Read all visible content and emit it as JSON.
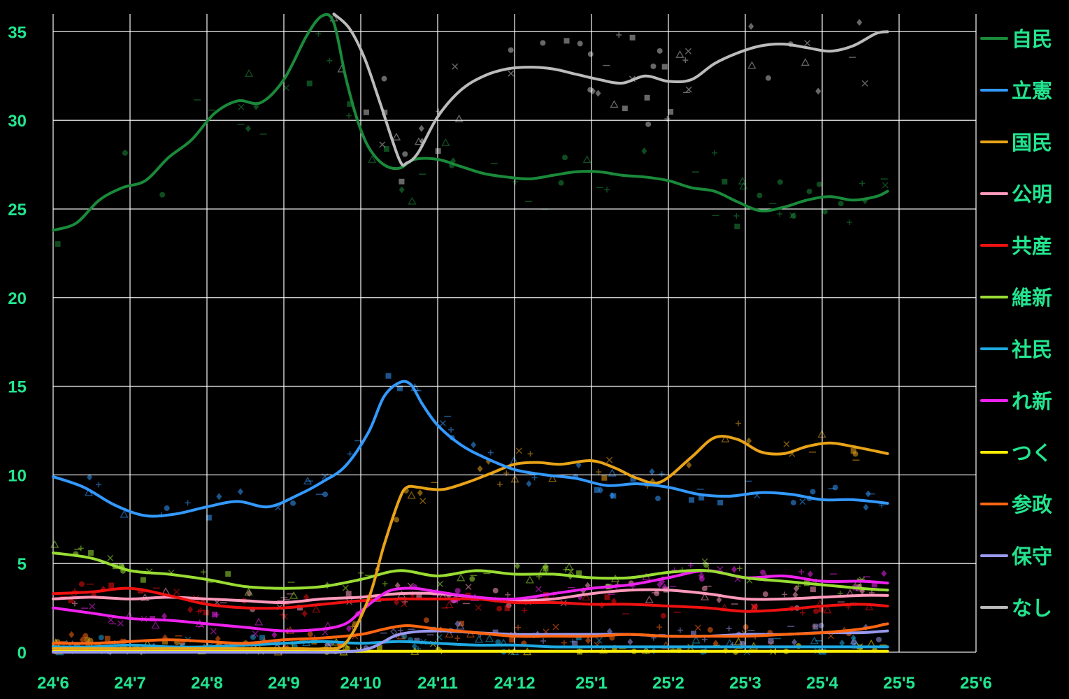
{
  "chart_data": {
    "type": "line",
    "title": "",
    "xlabel": "",
    "ylabel": "",
    "x_tick_labels": [
      "24'6",
      "24'7",
      "24'8",
      "24'9",
      "24'10",
      "24'11",
      "24'12",
      "25'1",
      "25'2",
      "25'3",
      "25'4",
      "25'5",
      "25'6"
    ],
    "y_tick_labels": [
      "0",
      "5",
      "10",
      "15",
      "20",
      "25",
      "30",
      "35"
    ],
    "xlim": [
      0,
      12
    ],
    "ylim": [
      0,
      36
    ],
    "grid": true,
    "legend_position": "right",
    "series": [
      {
        "name": "自民",
        "color": "#1a8a3a",
        "x": [
          0,
          0.3,
          0.6,
          0.9,
          1.2,
          1.5,
          1.8,
          2.1,
          2.4,
          2.7,
          3,
          3.3,
          3.5,
          3.65,
          3.8,
          3.95,
          4.1,
          4.3,
          4.5,
          4.7,
          5,
          5.3,
          5.6,
          5.9,
          6.2,
          6.5,
          6.8,
          7.1,
          7.4,
          7.7,
          8,
          8.3,
          8.6,
          8.9,
          9.2,
          9.5,
          9.8,
          10.1,
          10.4,
          10.7,
          10.85
        ],
        "y": [
          23.8,
          24.2,
          25.5,
          26.2,
          26.6,
          27.9,
          28.9,
          30.4,
          31.1,
          31,
          32.3,
          34.8,
          35.9,
          35.5,
          32.5,
          30.1,
          28.5,
          27.5,
          27.3,
          27.8,
          27.8,
          27.4,
          27,
          26.8,
          26.7,
          26.9,
          27.1,
          27.1,
          26.9,
          26.8,
          26.6,
          26.2,
          26,
          25.4,
          24.9,
          25.1,
          25.5,
          25.7,
          25.5,
          25.7,
          26
        ]
      },
      {
        "name": "立憲",
        "color": "#3399ff",
        "x": [
          0,
          0.4,
          0.8,
          1.2,
          1.6,
          2,
          2.4,
          2.8,
          3.2,
          3.5,
          3.8,
          4.1,
          4.3,
          4.5,
          4.65,
          4.8,
          5,
          5.3,
          5.6,
          6,
          6.4,
          6.8,
          7.2,
          7.6,
          8,
          8.4,
          8.8,
          9.2,
          9.6,
          10,
          10.4,
          10.85
        ],
        "y": [
          9.9,
          9.3,
          8.3,
          7.7,
          7.8,
          8.2,
          8.5,
          8.2,
          8.9,
          9.6,
          10.5,
          12.4,
          14.4,
          15.2,
          15.1,
          14,
          12.8,
          11.7,
          11,
          10.3,
          10,
          9.8,
          9.4,
          9.5,
          9.3,
          8.9,
          8.8,
          9,
          8.9,
          8.6,
          8.6,
          8.4
        ]
      },
      {
        "name": "国民",
        "color": "#e8a317",
        "x": [
          0,
          0.4,
          0.8,
          1.2,
          1.6,
          2,
          2.4,
          2.8,
          3.2,
          3.5,
          3.8,
          4.1,
          4.3,
          4.5,
          4.6,
          4.75,
          4.9,
          5.1,
          5.4,
          5.7,
          6,
          6.3,
          6.6,
          7,
          7.3,
          7.6,
          7.9,
          8.3,
          8.6,
          8.9,
          9.2,
          9.5,
          9.8,
          10.1,
          10.4,
          10.85
        ],
        "y": [
          0.2,
          0.2,
          0.2,
          0.2,
          0.2,
          0.2,
          0.2,
          0.2,
          0.2,
          0.2,
          0.5,
          3,
          6,
          8.6,
          9.3,
          9.3,
          9.2,
          9.2,
          9.6,
          10.1,
          10.6,
          10.7,
          10.6,
          10.8,
          10.4,
          9.8,
          9.6,
          11,
          12.1,
          12,
          11.3,
          11.2,
          11.6,
          11.8,
          11.6,
          11.2
        ]
      },
      {
        "name": "公明",
        "color": "#ff99bb",
        "x": [
          0,
          0.5,
          1,
          1.5,
          2,
          2.5,
          3,
          3.5,
          4,
          4.5,
          5,
          5.5,
          6,
          6.5,
          7,
          7.5,
          8,
          8.5,
          9,
          9.5,
          10,
          10.5,
          10.85
        ],
        "y": [
          3,
          3.1,
          3,
          3.1,
          3,
          2.9,
          2.8,
          3,
          3.1,
          3.3,
          3.3,
          3.1,
          2.9,
          3,
          3.3,
          3.5,
          3.5,
          3.3,
          3,
          3,
          3.1,
          3.2,
          3.2
        ]
      },
      {
        "name": "共産",
        "color": "#ee1111",
        "x": [
          0,
          0.5,
          1,
          1.5,
          2,
          2.5,
          3,
          3.5,
          4,
          4.5,
          5,
          5.5,
          6,
          6.5,
          7,
          7.5,
          8,
          8.5,
          9,
          9.5,
          10,
          10.5,
          10.85
        ],
        "y": [
          3.3,
          3.4,
          3.6,
          3.2,
          2.7,
          2.5,
          2.5,
          2.7,
          2.9,
          3,
          3,
          3,
          2.8,
          2.8,
          2.7,
          2.7,
          2.6,
          2.5,
          2.3,
          2.4,
          2.6,
          2.7,
          2.6
        ]
      },
      {
        "name": "維新",
        "color": "#99dd33",
        "x": [
          0,
          0.5,
          1,
          1.5,
          2,
          2.5,
          3,
          3.5,
          4,
          4.5,
          5,
          5.5,
          6,
          6.5,
          7,
          7.5,
          8,
          8.5,
          9,
          9.5,
          10,
          10.5,
          10.85
        ],
        "y": [
          5.6,
          5.3,
          4.6,
          4.4,
          4.1,
          3.7,
          3.6,
          3.7,
          4.1,
          4.6,
          4.3,
          4.6,
          4.4,
          4.4,
          4.2,
          4.2,
          4.5,
          4.6,
          4.2,
          4,
          3.8,
          3.6,
          3.5
        ]
      },
      {
        "name": "社民",
        "color": "#1ea8e0",
        "x": [
          0,
          0.5,
          1,
          1.5,
          2,
          2.5,
          3,
          3.5,
          4,
          4.5,
          5,
          5.5,
          6,
          6.5,
          7,
          7.5,
          8,
          8.5,
          9,
          9.5,
          10,
          10.5,
          10.85
        ],
        "y": [
          0.3,
          0.3,
          0.4,
          0.3,
          0.3,
          0.4,
          0.5,
          0.6,
          0.5,
          0.6,
          0.5,
          0.4,
          0.4,
          0.3,
          0.3,
          0.3,
          0.3,
          0.3,
          0.3,
          0.3,
          0.3,
          0.3,
          0.3
        ]
      },
      {
        "name": "れ新",
        "color": "#ee22ee",
        "x": [
          0,
          0.5,
          1,
          1.5,
          2,
          2.5,
          3,
          3.5,
          3.8,
          4,
          4.2,
          4.4,
          4.7,
          5,
          5.5,
          6,
          6.5,
          7,
          7.5,
          8,
          8.5,
          9,
          9.5,
          10,
          10.5,
          10.85
        ],
        "y": [
          2.5,
          2.2,
          1.9,
          1.8,
          1.6,
          1.4,
          1.2,
          1.3,
          1.6,
          2.3,
          3,
          3.5,
          3.6,
          3.4,
          3.1,
          3,
          3.3,
          3.6,
          3.8,
          4.2,
          4.6,
          4.2,
          4.3,
          4,
          4,
          3.9
        ]
      },
      {
        "name": "つく",
        "color": "#ffee00",
        "x": [
          0,
          1,
          2,
          3,
          4,
          5,
          6,
          7,
          8,
          9,
          10,
          10.85
        ],
        "y": [
          0.05,
          0.05,
          0.05,
          0.05,
          0.05,
          0.05,
          0.05,
          0.05,
          0.05,
          0.05,
          0.05,
          0.05
        ]
      },
      {
        "name": "参政",
        "color": "#ff6611",
        "x": [
          0,
          0.5,
          1,
          1.5,
          2,
          2.5,
          3,
          3.5,
          4,
          4.3,
          4.6,
          5,
          5.5,
          6,
          6.5,
          7,
          7.5,
          8,
          8.5,
          9,
          9.5,
          10,
          10.5,
          10.85
        ],
        "y": [
          0.5,
          0.5,
          0.6,
          0.7,
          0.6,
          0.5,
          0.7,
          0.8,
          1,
          1.3,
          1.5,
          1.3,
          1.1,
          0.9,
          0.9,
          0.9,
          1,
          0.9,
          0.9,
          0.9,
          1,
          1.1,
          1.3,
          1.6
        ]
      },
      {
        "name": "保守",
        "color": "#9999ee",
        "x": [
          0,
          1,
          2,
          3,
          4,
          4.5,
          5,
          5.5,
          6,
          6.5,
          7,
          7.5,
          8,
          8.5,
          9,
          9.5,
          10,
          10.5,
          10.85
        ],
        "y": [
          0,
          0,
          0,
          0,
          0.1,
          1,
          1.2,
          1.1,
          1,
          1,
          1,
          1,
          0.9,
          0.9,
          1,
          1,
          1.1,
          1.1,
          1.2
        ]
      },
      {
        "name": "なし",
        "color": "#bbbbbb",
        "x": [
          3.65,
          3.85,
          4.05,
          4.25,
          4.5,
          4.6,
          4.75,
          5,
          5.3,
          5.6,
          5.9,
          6.2,
          6.5,
          6.8,
          7.1,
          7.4,
          7.7,
          8,
          8.3,
          8.6,
          8.9,
          9.2,
          9.5,
          9.8,
          10.1,
          10.4,
          10.7,
          10.85
        ],
        "y": [
          36,
          35.2,
          33.5,
          31,
          27.8,
          27.6,
          28.2,
          30.2,
          31.7,
          32.5,
          32.9,
          33,
          32.9,
          32.6,
          32.3,
          32.1,
          32.5,
          32.2,
          32.3,
          33.2,
          33.8,
          34.2,
          34.3,
          34.1,
          33.9,
          34.2,
          34.9,
          35
        ]
      }
    ],
    "scatter_note_visible": false
  }
}
